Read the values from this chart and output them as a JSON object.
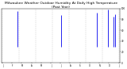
{
  "title": "Milwaukee Weather Outdoor Humidity At Daily High Temperature (Past Year)",
  "title_fontsize": 3.2,
  "background_color": "#ffffff",
  "plot_bg_color": "#ffffff",
  "grid_color": "#aaaaaa",
  "n_days": 365,
  "ylim": [
    0,
    100
  ],
  "ytick_values": [
    0,
    20,
    40,
    60,
    80,
    100
  ],
  "n_gridlines": 8,
  "bar_color": "#0000ee",
  "dot_color_blue": "#1155cc",
  "dot_color_red": "#cc2200",
  "seed": 12345
}
